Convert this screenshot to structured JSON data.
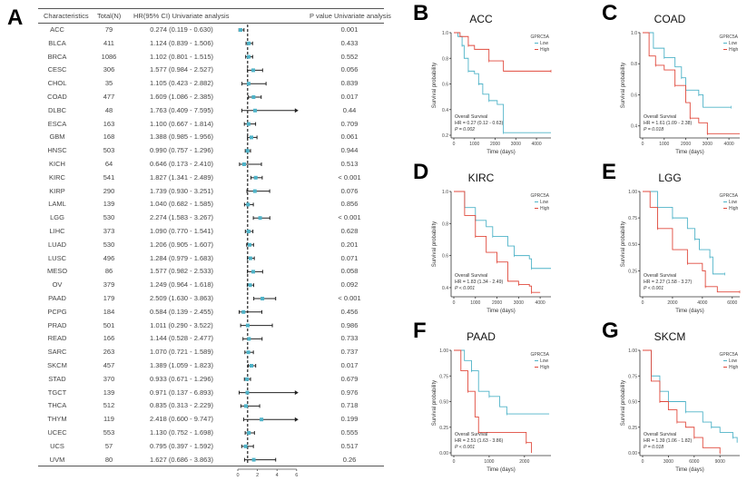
{
  "panels": {
    "a": "A",
    "b": "B",
    "c": "C",
    "d": "D",
    "e": "E",
    "f": "F",
    "g": "G"
  },
  "forest": {
    "headers": {
      "characteristics": "Characteristics",
      "total": "Total(N)",
      "hr": "HR(95% CI) Univariate analysis",
      "p": "P value Univariate analysis"
    },
    "axis_ticks": [
      "0",
      "2",
      "4",
      "6"
    ],
    "colors": {
      "point": "#4fb3c8",
      "bar": "#222222",
      "reference_line": "#222222"
    }
  },
  "chart_data": [
    {
      "type": "forest",
      "xlim": [
        0,
        6
      ],
      "reference": 1,
      "xticks": [
        0,
        2,
        4,
        6
      ],
      "rows": [
        {
          "name": "ACC",
          "n": "79",
          "hr_text": "0.274 (0.119 - 0.630)",
          "p": "0.001",
          "hr": 0.274,
          "lo": 0.119,
          "hi": 0.63
        },
        {
          "name": "BLCA",
          "n": "411",
          "hr_text": "1.124 (0.839 - 1.506)",
          "p": "0.433",
          "hr": 1.124,
          "lo": 0.839,
          "hi": 1.506
        },
        {
          "name": "BRCA",
          "n": "1086",
          "hr_text": "1.102 (0.801 - 1.515)",
          "p": "0.552",
          "hr": 1.102,
          "lo": 0.801,
          "hi": 1.515
        },
        {
          "name": "CESC",
          "n": "306",
          "hr_text": "1.577 (0.984 - 2.527)",
          "p": "0.056",
          "hr": 1.577,
          "lo": 0.984,
          "hi": 2.527
        },
        {
          "name": "CHOL",
          "n": "35",
          "hr_text": "1.105 (0.423 - 2.882)",
          "p": "0.839",
          "hr": 1.105,
          "lo": 0.423,
          "hi": 2.882
        },
        {
          "name": "COAD",
          "n": "477",
          "hr_text": "1.609 (1.086 - 2.385)",
          "p": "0.017",
          "hr": 1.609,
          "lo": 1.086,
          "hi": 2.385
        },
        {
          "name": "DLBC",
          "n": "48",
          "hr_text": "1.763 (0.409 - 7.595)",
          "p": "0.44",
          "hr": 1.763,
          "lo": 0.409,
          "hi": 7.595
        },
        {
          "name": "ESCA",
          "n": "163",
          "hr_text": "1.100 (0.667 - 1.814)",
          "p": "0.709",
          "hr": 1.1,
          "lo": 0.667,
          "hi": 1.814
        },
        {
          "name": "GBM",
          "n": "168",
          "hr_text": "1.388 (0.985 - 1.956)",
          "p": "0.061",
          "hr": 1.388,
          "lo": 0.985,
          "hi": 1.956
        },
        {
          "name": "HNSC",
          "n": "503",
          "hr_text": "0.990 (0.757 - 1.296)",
          "p": "0.944",
          "hr": 0.99,
          "lo": 0.757,
          "hi": 1.296
        },
        {
          "name": "KICH",
          "n": "64",
          "hr_text": "0.646 (0.173 - 2.410)",
          "p": "0.513",
          "hr": 0.646,
          "lo": 0.173,
          "hi": 2.41
        },
        {
          "name": "KIRC",
          "n": "541",
          "hr_text": "1.827 (1.341 - 2.489)",
          "p": "< 0.001",
          "hr": 1.827,
          "lo": 1.341,
          "hi": 2.489
        },
        {
          "name": "KIRP",
          "n": "290",
          "hr_text": "1.739 (0.930 - 3.251)",
          "p": "0.076",
          "hr": 1.739,
          "lo": 0.93,
          "hi": 3.251
        },
        {
          "name": "LAML",
          "n": "139",
          "hr_text": "1.040 (0.682 - 1.585)",
          "p": "0.856",
          "hr": 1.04,
          "lo": 0.682,
          "hi": 1.585
        },
        {
          "name": "LGG",
          "n": "530",
          "hr_text": "2.274 (1.583 - 3.267)",
          "p": "< 0.001",
          "hr": 2.274,
          "lo": 1.583,
          "hi": 3.267
        },
        {
          "name": "LIHC",
          "n": "373",
          "hr_text": "1.090 (0.770 - 1.541)",
          "p": "0.628",
          "hr": 1.09,
          "lo": 0.77,
          "hi": 1.541
        },
        {
          "name": "LUAD",
          "n": "530",
          "hr_text": "1.206 (0.905 - 1.607)",
          "p": "0.201",
          "hr": 1.206,
          "lo": 0.905,
          "hi": 1.607
        },
        {
          "name": "LUSC",
          "n": "496",
          "hr_text": "1.284 (0.979 - 1.683)",
          "p": "0.071",
          "hr": 1.284,
          "lo": 0.979,
          "hi": 1.683
        },
        {
          "name": "MESO",
          "n": "86",
          "hr_text": "1.577 (0.982 - 2.533)",
          "p": "0.058",
          "hr": 1.577,
          "lo": 0.982,
          "hi": 2.533
        },
        {
          "name": "OV",
          "n": "379",
          "hr_text": "1.249 (0.964 - 1.618)",
          "p": "0.092",
          "hr": 1.249,
          "lo": 0.964,
          "hi": 1.618
        },
        {
          "name": "PAAD",
          "n": "179",
          "hr_text": "2.509 (1.630 - 3.863)",
          "p": "< 0.001",
          "hr": 2.509,
          "lo": 1.63,
          "hi": 3.863
        },
        {
          "name": "PCPG",
          "n": "184",
          "hr_text": "0.584 (0.139 - 2.455)",
          "p": "0.456",
          "hr": 0.584,
          "lo": 0.139,
          "hi": 2.455
        },
        {
          "name": "PRAD",
          "n": "501",
          "hr_text": "1.011 (0.290 - 3.522)",
          "p": "0.986",
          "hr": 1.011,
          "lo": 0.29,
          "hi": 3.522
        },
        {
          "name": "READ",
          "n": "166",
          "hr_text": "1.144 (0.528 - 2.477)",
          "p": "0.733",
          "hr": 1.144,
          "lo": 0.528,
          "hi": 2.477
        },
        {
          "name": "SARC",
          "n": "263",
          "hr_text": "1.070 (0.721 - 1.589)",
          "p": "0.737",
          "hr": 1.07,
          "lo": 0.721,
          "hi": 1.589
        },
        {
          "name": "SKCM",
          "n": "457",
          "hr_text": "1.389 (1.059 - 1.823)",
          "p": "0.017",
          "hr": 1.389,
          "lo": 1.059,
          "hi": 1.823
        },
        {
          "name": "STAD",
          "n": "370",
          "hr_text": "0.933 (0.671 - 1.296)",
          "p": "0.679",
          "hr": 0.933,
          "lo": 0.671,
          "hi": 1.296
        },
        {
          "name": "TGCT",
          "n": "139",
          "hr_text": "0.971 (0.137 - 6.893)",
          "p": "0.976",
          "hr": 0.971,
          "lo": 0.137,
          "hi": 6.893
        },
        {
          "name": "THCA",
          "n": "512",
          "hr_text": "0.835 (0.313 - 2.229)",
          "p": "0.718",
          "hr": 0.835,
          "lo": 0.313,
          "hi": 2.229
        },
        {
          "name": "THYM",
          "n": "119",
          "hr_text": "2.418 (0.600 - 9.747)",
          "p": "0.199",
          "hr": 2.418,
          "lo": 0.6,
          "hi": 9.747
        },
        {
          "name": "UCEC",
          "n": "553",
          "hr_text": "1.130 (0.752 - 1.698)",
          "p": "0.555",
          "hr": 1.13,
          "lo": 0.752,
          "hi": 1.698
        },
        {
          "name": "UCS",
          "n": "57",
          "hr_text": "0.795 (0.397 - 1.592)",
          "p": "0.517",
          "hr": 0.795,
          "lo": 0.397,
          "hi": 1.592
        },
        {
          "name": "UVM",
          "n": "80",
          "hr_text": "1.627 (0.686 - 3.863)",
          "p": "0.26",
          "hr": 1.627,
          "lo": 0.686,
          "hi": 3.863
        }
      ]
    },
    {
      "type": "line",
      "title": "ACC",
      "xlabel": "Time (days)",
      "ylabel": "Survival probability",
      "xlim": [
        0,
        4700
      ],
      "ylim": [
        0.2,
        1.0
      ],
      "xticks": [
        0,
        1000,
        2000,
        3000,
        4000
      ],
      "yticks": [
        "0.2",
        "0.4",
        "0.6",
        "0.8",
        "1.0"
      ],
      "legend_title": "GPRC5A",
      "legend_position": "top-right",
      "annotation": [
        "Overall Survival",
        "HR = 0.27 (0.12 - 0.63)",
        "P = 0.002"
      ],
      "series": [
        {
          "name": "Low",
          "color": "#4fb3c8",
          "points": [
            [
              0,
              1
            ],
            [
              200,
              0.97
            ],
            [
              400,
              0.9
            ],
            [
              500,
              0.8
            ],
            [
              700,
              0.7
            ],
            [
              1000,
              0.68
            ],
            [
              1200,
              0.6
            ],
            [
              1400,
              0.52
            ],
            [
              1700,
              0.47
            ],
            [
              2100,
              0.44
            ],
            [
              2400,
              0.22
            ],
            [
              4700,
              0.22
            ]
          ]
        },
        {
          "name": "High",
          "color": "#e0493c",
          "points": [
            [
              0,
              1
            ],
            [
              300,
              0.97
            ],
            [
              700,
              0.9
            ],
            [
              1000,
              0.87
            ],
            [
              1700,
              0.78
            ],
            [
              2400,
              0.7
            ],
            [
              4700,
              0.7
            ]
          ]
        }
      ]
    },
    {
      "type": "line",
      "title": "COAD",
      "xlabel": "Time (days)",
      "ylabel": "Survival probability",
      "xlim": [
        0,
        4500
      ],
      "ylim": [
        0.34,
        1.0
      ],
      "xticks": [
        0,
        1000,
        2000,
        3000,
        4000
      ],
      "yticks": [
        "0.4",
        "0.6",
        "0.8",
        "1.0"
      ],
      "legend_title": "GPRC5A",
      "legend_position": "top-right",
      "annotation": [
        "Overall Survival",
        "HR = 1.61 (1.09 - 2.38)",
        "P = 0.018"
      ],
      "series": [
        {
          "name": "Low",
          "color": "#4fb3c8",
          "points": [
            [
              0,
              1
            ],
            [
              500,
              0.9
            ],
            [
              1000,
              0.84
            ],
            [
              1500,
              0.78
            ],
            [
              1800,
              0.71
            ],
            [
              2000,
              0.63
            ],
            [
              2600,
              0.6
            ],
            [
              2800,
              0.52
            ],
            [
              4100,
              0.52
            ]
          ]
        },
        {
          "name": "High",
          "color": "#e0493c",
          "points": [
            [
              0,
              1
            ],
            [
              300,
              0.85
            ],
            [
              600,
              0.79
            ],
            [
              1000,
              0.76
            ],
            [
              1500,
              0.66
            ],
            [
              2000,
              0.55
            ],
            [
              2200,
              0.45
            ],
            [
              2600,
              0.42
            ],
            [
              3000,
              0.35
            ],
            [
              4500,
              0.35
            ]
          ]
        }
      ]
    },
    {
      "type": "line",
      "title": "KIRC",
      "xlabel": "Time (days)",
      "ylabel": "Survival probability",
      "xlim": [
        0,
        4500
      ],
      "ylim": [
        0.36,
        1.0
      ],
      "xticks": [
        0,
        1000,
        2000,
        3000,
        4000
      ],
      "yticks": [
        "0.4",
        "0.6",
        "0.8",
        "1.0"
      ],
      "legend_title": "GPRC5A",
      "legend_position": "top-right",
      "annotation": [
        "Overall Survival",
        "HR = 1.83 (1.34 - 2.49)",
        "P < 0.001"
      ],
      "series": [
        {
          "name": "Low",
          "color": "#4fb3c8",
          "points": [
            [
              0,
              1
            ],
            [
              500,
              0.9
            ],
            [
              1000,
              0.82
            ],
            [
              1500,
              0.78
            ],
            [
              1800,
              0.72
            ],
            [
              2500,
              0.66
            ],
            [
              2800,
              0.6
            ],
            [
              3500,
              0.58
            ],
            [
              3600,
              0.52
            ],
            [
              4500,
              0.52
            ]
          ]
        },
        {
          "name": "High",
          "color": "#e0493c",
          "points": [
            [
              0,
              1
            ],
            [
              500,
              0.85
            ],
            [
              1000,
              0.72
            ],
            [
              1500,
              0.62
            ],
            [
              2000,
              0.56
            ],
            [
              2500,
              0.44
            ],
            [
              3000,
              0.42
            ],
            [
              3500,
              0.41
            ],
            [
              3600,
              0.37
            ],
            [
              4000,
              0.37
            ]
          ]
        }
      ]
    },
    {
      "type": "line",
      "title": "LGG",
      "xlabel": "Time (days)",
      "ylabel": "Survival probability",
      "xlim": [
        0,
        6500
      ],
      "ylim": [
        0.03,
        1.0
      ],
      "xticks": [
        0,
        2000,
        4000,
        6000
      ],
      "yticks": [
        "0.25",
        "0.50",
        "0.75",
        "1.00"
      ],
      "legend_title": "GPRC5A",
      "legend_position": "top-right",
      "annotation": [
        "Overall Survival",
        "HR = 2.27 (1.58 - 3.27)",
        "P < 0.001"
      ],
      "series": [
        {
          "name": "Low",
          "color": "#4fb3c8",
          "points": [
            [
              0,
              1
            ],
            [
              1000,
              0.85
            ],
            [
              2000,
              0.75
            ],
            [
              3000,
              0.65
            ],
            [
              3500,
              0.55
            ],
            [
              3800,
              0.45
            ],
            [
              4500,
              0.38
            ],
            [
              4700,
              0.22
            ],
            [
              5500,
              0.22
            ]
          ]
        },
        {
          "name": "High",
          "color": "#e0493c",
          "points": [
            [
              0,
              1
            ],
            [
              500,
              0.85
            ],
            [
              1000,
              0.65
            ],
            [
              2000,
              0.45
            ],
            [
              3000,
              0.32
            ],
            [
              4000,
              0.25
            ],
            [
              4200,
              0.1
            ],
            [
              5000,
              0.05
            ],
            [
              6500,
              0.05
            ]
          ]
        }
      ]
    },
    {
      "type": "line",
      "title": "PAAD",
      "xlabel": "Time (days)",
      "ylabel": "Survival probability",
      "xlim": [
        0,
        2750
      ],
      "ylim": [
        0,
        1.0
      ],
      "xticks": [
        0,
        1000,
        2000
      ],
      "yticks": [
        "0.00",
        "0.25",
        "0.50",
        "0.75",
        "1.00"
      ],
      "legend_title": "GPRC5A",
      "legend_position": "top-right",
      "annotation": [
        "Overall Survival",
        "HR = 2.51 (1.63 - 3.86)",
        "P < 0.001"
      ],
      "series": [
        {
          "name": "Low",
          "color": "#4fb3c8",
          "points": [
            [
              0,
              1
            ],
            [
              300,
              0.9
            ],
            [
              500,
              0.8
            ],
            [
              700,
              0.6
            ],
            [
              1000,
              0.55
            ],
            [
              1300,
              0.45
            ],
            [
              1500,
              0.38
            ],
            [
              2700,
              0.38
            ]
          ]
        },
        {
          "name": "High",
          "color": "#e0493c",
          "points": [
            [
              0,
              1
            ],
            [
              200,
              0.8
            ],
            [
              400,
              0.6
            ],
            [
              600,
              0.35
            ],
            [
              700,
              0.2
            ],
            [
              2000,
              0.2
            ],
            [
              2050,
              0.1
            ],
            [
              2200,
              0
            ]
          ]
        }
      ]
    },
    {
      "type": "line",
      "title": "SKCM",
      "xlabel": "Time (days)",
      "ylabel": "Survival probability",
      "xlim": [
        0,
        11300
      ],
      "ylim": [
        0,
        1.0
      ],
      "xticks": [
        0,
        3000,
        6000,
        9000
      ],
      "yticks": [
        "0.00",
        "0.25",
        "0.50",
        "0.75",
        "1.00"
      ],
      "legend_title": "GPRC5A",
      "legend_position": "top-right",
      "annotation": [
        "Overall Survival",
        "HR = 1.39 (1.06 - 1.82)",
        "P = 0.018"
      ],
      "series": [
        {
          "name": "Low",
          "color": "#4fb3c8",
          "points": [
            [
              0,
              1
            ],
            [
              1000,
              0.75
            ],
            [
              2000,
              0.6
            ],
            [
              3000,
              0.5
            ],
            [
              5000,
              0.4
            ],
            [
              7000,
              0.3
            ],
            [
              8000,
              0.25
            ],
            [
              9000,
              0.2
            ],
            [
              10500,
              0.15
            ],
            [
              11000,
              0.1
            ]
          ]
        },
        {
          "name": "High",
          "color": "#e0493c",
          "points": [
            [
              0,
              1
            ],
            [
              1000,
              0.7
            ],
            [
              2000,
              0.5
            ],
            [
              3000,
              0.42
            ],
            [
              4000,
              0.3
            ],
            [
              5000,
              0.25
            ],
            [
              6000,
              0.15
            ],
            [
              7000,
              0.05
            ],
            [
              9000,
              0
            ]
          ]
        }
      ]
    }
  ]
}
